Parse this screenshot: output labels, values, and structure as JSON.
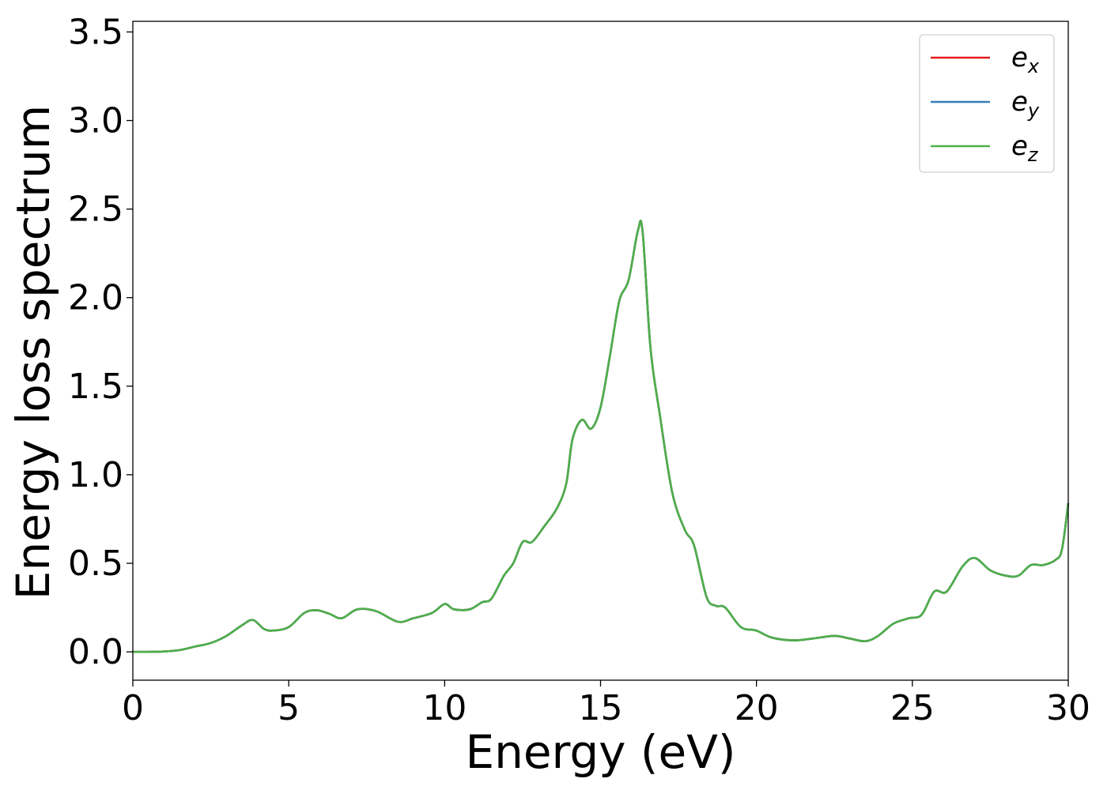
{
  "chart_data": {
    "type": "line",
    "xlabel": "Energy (eV)",
    "ylabel": "Energy loss spectrum",
    "xlim": [
      0,
      30
    ],
    "ylim": [
      -0.16,
      3.56
    ],
    "xticks": [
      0,
      5,
      10,
      15,
      20,
      25,
      30
    ],
    "xtick_labels": [
      "0",
      "5",
      "10",
      "15",
      "20",
      "25",
      "30"
    ],
    "yticks": [
      0.0,
      0.5,
      1.0,
      1.5,
      2.0,
      2.5,
      3.0,
      3.5
    ],
    "ytick_labels": [
      "0.0",
      "0.5",
      "1.0",
      "1.5",
      "2.0",
      "2.5",
      "3.0",
      "3.5"
    ],
    "grid": false,
    "legend": {
      "placement": "upper right",
      "entries": [
        {
          "base": "e",
          "sub": "x",
          "color": "#e41a1c"
        },
        {
          "base": "e",
          "sub": "y",
          "color": "#377eb8"
        },
        {
          "base": "e",
          "sub": "z",
          "color": "#4daf4a"
        }
      ]
    },
    "x": [
      0,
      0.5,
      1.0,
      1.5,
      2.0,
      2.5,
      3.0,
      3.5,
      3.85,
      4.2,
      4.5,
      5.0,
      5.5,
      5.9,
      6.3,
      6.7,
      7.2,
      7.8,
      8.5,
      9.0,
      9.6,
      10.0,
      10.3,
      10.8,
      11.2,
      11.5,
      11.9,
      12.2,
      12.5,
      12.8,
      13.2,
      13.6,
      13.9,
      14.1,
      14.4,
      14.7,
      15.0,
      15.3,
      15.6,
      15.9,
      16.2,
      16.35,
      16.6,
      16.9,
      17.3,
      17.7,
      18.0,
      18.4,
      18.7,
      19.0,
      19.5,
      20.0,
      20.5,
      21.2,
      21.8,
      22.5,
      23.0,
      23.5,
      23.9,
      24.4,
      24.9,
      25.3,
      25.7,
      26.1,
      26.6,
      27.0,
      27.5,
      28.0,
      28.4,
      28.8,
      29.2,
      29.6,
      29.8,
      30.0
    ],
    "series": [
      {
        "name": "e_x",
        "values": [
          0.0,
          0.0,
          0.002,
          0.01,
          0.03,
          0.05,
          0.09,
          0.15,
          0.18,
          0.13,
          0.12,
          0.14,
          0.22,
          0.235,
          0.215,
          0.19,
          0.24,
          0.23,
          0.17,
          0.19,
          0.22,
          0.27,
          0.24,
          0.24,
          0.28,
          0.3,
          0.43,
          0.5,
          0.62,
          0.62,
          0.71,
          0.81,
          0.95,
          1.2,
          1.31,
          1.26,
          1.38,
          1.67,
          1.98,
          2.1,
          2.38,
          2.37,
          1.72,
          1.34,
          0.9,
          0.69,
          0.6,
          0.31,
          0.26,
          0.25,
          0.14,
          0.12,
          0.08,
          0.065,
          0.075,
          0.09,
          0.075,
          0.06,
          0.09,
          0.16,
          0.19,
          0.21,
          0.34,
          0.34,
          0.48,
          0.53,
          0.46,
          0.43,
          0.43,
          0.49,
          0.49,
          0.52,
          0.58,
          0.84
        ],
        "color": "#e41a1c"
      },
      {
        "name": "e_y",
        "values": [
          0.0,
          0.0,
          0.002,
          0.01,
          0.03,
          0.05,
          0.09,
          0.15,
          0.18,
          0.13,
          0.12,
          0.14,
          0.22,
          0.235,
          0.215,
          0.19,
          0.24,
          0.23,
          0.17,
          0.19,
          0.22,
          0.27,
          0.24,
          0.24,
          0.28,
          0.3,
          0.43,
          0.5,
          0.62,
          0.62,
          0.71,
          0.81,
          0.95,
          1.2,
          1.31,
          1.26,
          1.38,
          1.67,
          1.98,
          2.1,
          2.38,
          2.37,
          1.72,
          1.34,
          0.9,
          0.69,
          0.6,
          0.31,
          0.26,
          0.25,
          0.14,
          0.12,
          0.08,
          0.065,
          0.075,
          0.09,
          0.075,
          0.06,
          0.09,
          0.16,
          0.19,
          0.21,
          0.34,
          0.34,
          0.48,
          0.53,
          0.46,
          0.43,
          0.43,
          0.49,
          0.49,
          0.52,
          0.58,
          0.84
        ],
        "color": "#377eb8"
      },
      {
        "name": "e_z",
        "values": [
          0.0,
          0.0,
          0.002,
          0.01,
          0.03,
          0.05,
          0.09,
          0.15,
          0.18,
          0.13,
          0.12,
          0.14,
          0.22,
          0.235,
          0.215,
          0.19,
          0.24,
          0.23,
          0.17,
          0.19,
          0.22,
          0.27,
          0.24,
          0.24,
          0.28,
          0.3,
          0.43,
          0.5,
          0.62,
          0.62,
          0.71,
          0.81,
          0.95,
          1.2,
          1.31,
          1.26,
          1.38,
          1.67,
          1.98,
          2.1,
          2.38,
          2.37,
          1.72,
          1.34,
          0.9,
          0.69,
          0.6,
          0.31,
          0.26,
          0.25,
          0.14,
          0.12,
          0.08,
          0.065,
          0.075,
          0.09,
          0.075,
          0.06,
          0.09,
          0.16,
          0.19,
          0.21,
          0.34,
          0.34,
          0.48,
          0.53,
          0.46,
          0.43,
          0.43,
          0.49,
          0.49,
          0.52,
          0.58,
          0.84
        ],
        "color": "#4daf4a"
      }
    ]
  }
}
